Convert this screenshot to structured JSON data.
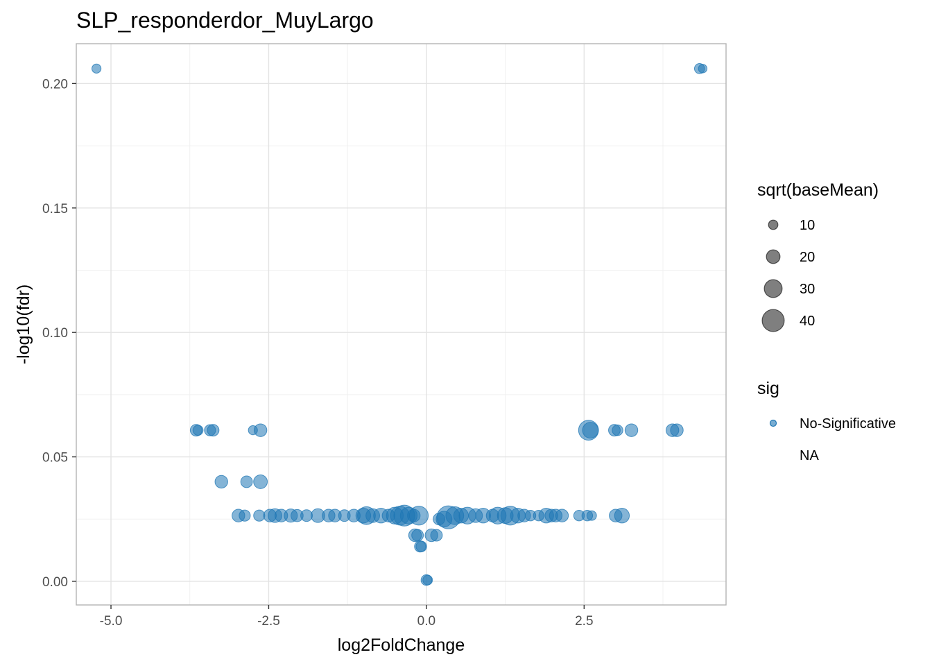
{
  "chart_data": {
    "type": "scatter",
    "title": "SLP_responderdor_MuyLargo",
    "xlabel": "log2FoldChange",
    "ylabel": "-log10(fdr)",
    "xlim": [
      -5.55,
      4.75
    ],
    "ylim": [
      -0.0095,
      0.216
    ],
    "x_ticks": [
      -5.0,
      -2.5,
      0.0,
      2.5
    ],
    "x_tick_labels": [
      "-5.0",
      "-2.5",
      "0.0",
      "2.5"
    ],
    "y_ticks": [
      0.0,
      0.05,
      0.1,
      0.15,
      0.2
    ],
    "y_tick_labels": [
      "0.00",
      "0.05",
      "0.10",
      "0.15",
      "0.20"
    ],
    "grid": true,
    "point_color": "#1f77b4",
    "point_alpha": 0.55,
    "legend_position": "right",
    "legend": {
      "size_title": "sqrt(baseMean)",
      "size_items": [
        {
          "label": "10",
          "value": 10
        },
        {
          "label": "20",
          "value": 20
        },
        {
          "label": "30",
          "value": 30
        },
        {
          "label": "40",
          "value": 40
        }
      ],
      "color_title": "sig",
      "color_items": [
        {
          "label": "No-Significative",
          "color": "#1f77b4"
        },
        {
          "label": "NA",
          "color": null
        }
      ]
    },
    "series": [
      {
        "name": "No-Significative",
        "points": [
          {
            "x": -5.23,
            "y": 0.206,
            "size": 7
          },
          {
            "x": 4.33,
            "y": 0.206,
            "size": 9
          },
          {
            "x": 4.38,
            "y": 0.206,
            "size": 6
          },
          {
            "x": -3.65,
            "y": 0.0607,
            "size": 12
          },
          {
            "x": -3.62,
            "y": 0.0607,
            "size": 9
          },
          {
            "x": -3.43,
            "y": 0.0607,
            "size": 11
          },
          {
            "x": -3.38,
            "y": 0.0607,
            "size": 12
          },
          {
            "x": -2.75,
            "y": 0.0607,
            "size": 7
          },
          {
            "x": -2.63,
            "y": 0.0607,
            "size": 14
          },
          {
            "x": 2.57,
            "y": 0.0607,
            "size": 28
          },
          {
            "x": 2.6,
            "y": 0.0607,
            "size": 20
          },
          {
            "x": 2.98,
            "y": 0.0607,
            "size": 12
          },
          {
            "x": 3.03,
            "y": 0.0607,
            "size": 10
          },
          {
            "x": 3.25,
            "y": 0.0607,
            "size": 14
          },
          {
            "x": 3.9,
            "y": 0.0607,
            "size": 14
          },
          {
            "x": 3.97,
            "y": 0.0607,
            "size": 14
          },
          {
            "x": -3.25,
            "y": 0.04,
            "size": 14
          },
          {
            "x": -2.85,
            "y": 0.04,
            "size": 12
          },
          {
            "x": -2.63,
            "y": 0.04,
            "size": 16
          },
          {
            "x": -2.98,
            "y": 0.0264,
            "size": 14
          },
          {
            "x": -2.88,
            "y": 0.0264,
            "size": 11
          },
          {
            "x": -2.65,
            "y": 0.0264,
            "size": 11
          },
          {
            "x": -2.48,
            "y": 0.0264,
            "size": 14
          },
          {
            "x": -2.4,
            "y": 0.0264,
            "size": 16
          },
          {
            "x": -2.3,
            "y": 0.0264,
            "size": 14
          },
          {
            "x": -2.15,
            "y": 0.0264,
            "size": 15
          },
          {
            "x": -2.05,
            "y": 0.0264,
            "size": 13
          },
          {
            "x": -1.9,
            "y": 0.0264,
            "size": 12
          },
          {
            "x": -1.72,
            "y": 0.0264,
            "size": 16
          },
          {
            "x": -1.55,
            "y": 0.0264,
            "size": 14
          },
          {
            "x": -1.45,
            "y": 0.0264,
            "size": 14
          },
          {
            "x": -1.3,
            "y": 0.0264,
            "size": 12
          },
          {
            "x": -1.15,
            "y": 0.0264,
            "size": 14
          },
          {
            "x": -1.0,
            "y": 0.0264,
            "size": 18
          },
          {
            "x": -0.95,
            "y": 0.0264,
            "size": 24
          },
          {
            "x": -0.85,
            "y": 0.0264,
            "size": 16
          },
          {
            "x": -0.72,
            "y": 0.0264,
            "size": 18
          },
          {
            "x": -0.6,
            "y": 0.0264,
            "size": 14
          },
          {
            "x": -0.5,
            "y": 0.0264,
            "size": 22
          },
          {
            "x": -0.42,
            "y": 0.0264,
            "size": 26
          },
          {
            "x": -0.35,
            "y": 0.0264,
            "size": 30
          },
          {
            "x": -0.28,
            "y": 0.0264,
            "size": 22
          },
          {
            "x": -0.2,
            "y": 0.0264,
            "size": 14
          },
          {
            "x": -0.12,
            "y": 0.0264,
            "size": 26
          },
          {
            "x": -0.18,
            "y": 0.0185,
            "size": 14
          },
          {
            "x": -0.14,
            "y": 0.0185,
            "size": 12
          },
          {
            "x": -0.1,
            "y": 0.014,
            "size": 11
          },
          {
            "x": -0.08,
            "y": 0.014,
            "size": 10
          },
          {
            "x": 0.0,
            "y": 0.0005,
            "size": 10
          },
          {
            "x": 0.02,
            "y": 0.0005,
            "size": 8
          },
          {
            "x": 0.08,
            "y": 0.0185,
            "size": 14
          },
          {
            "x": 0.16,
            "y": 0.0185,
            "size": 12
          },
          {
            "x": 0.2,
            "y": 0.025,
            "size": 12
          },
          {
            "x": 0.28,
            "y": 0.025,
            "size": 20
          },
          {
            "x": 0.35,
            "y": 0.0257,
            "size": 34
          },
          {
            "x": 0.45,
            "y": 0.0264,
            "size": 24
          },
          {
            "x": 0.55,
            "y": 0.0264,
            "size": 18
          },
          {
            "x": 0.65,
            "y": 0.0264,
            "size": 22
          },
          {
            "x": 0.78,
            "y": 0.0264,
            "size": 16
          },
          {
            "x": 0.9,
            "y": 0.0264,
            "size": 18
          },
          {
            "x": 1.05,
            "y": 0.0264,
            "size": 14
          },
          {
            "x": 1.13,
            "y": 0.0264,
            "size": 22
          },
          {
            "x": 1.25,
            "y": 0.0264,
            "size": 20
          },
          {
            "x": 1.33,
            "y": 0.0264,
            "size": 26
          },
          {
            "x": 1.45,
            "y": 0.0264,
            "size": 18
          },
          {
            "x": 1.55,
            "y": 0.0264,
            "size": 14
          },
          {
            "x": 1.65,
            "y": 0.0264,
            "size": 10
          },
          {
            "x": 1.78,
            "y": 0.0264,
            "size": 10
          },
          {
            "x": 1.9,
            "y": 0.0264,
            "size": 18
          },
          {
            "x": 1.98,
            "y": 0.0264,
            "size": 14
          },
          {
            "x": 2.05,
            "y": 0.0264,
            "size": 14
          },
          {
            "x": 2.15,
            "y": 0.0264,
            "size": 14
          },
          {
            "x": 2.42,
            "y": 0.0264,
            "size": 10
          },
          {
            "x": 2.55,
            "y": 0.0264,
            "size": 10
          },
          {
            "x": 2.62,
            "y": 0.0264,
            "size": 8
          },
          {
            "x": 3.0,
            "y": 0.0264,
            "size": 14
          },
          {
            "x": 3.1,
            "y": 0.0264,
            "size": 18
          }
        ]
      }
    ]
  }
}
